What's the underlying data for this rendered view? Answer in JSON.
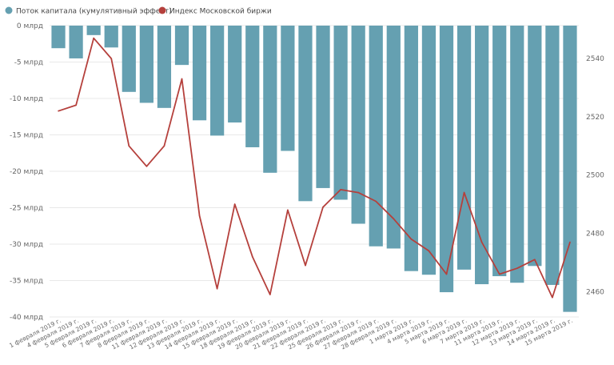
{
  "chart_data": {
    "type": "bar+line",
    "legend": {
      "placement": "top-left",
      "items": [
        {
          "label": "Поток капитала (кумулятивный эффект)",
          "color": "#65a0b1"
        },
        {
          "label": "Индекс Московской биржи",
          "color": "#b5403c"
        }
      ]
    },
    "categories": [
      "1 февраля 2019 г.",
      "4 февраля 2019 г.",
      "5 февраля 2019 г.",
      "6 февраля 2019 г.",
      "7 февраля 2019 г.",
      "8 февраля 2019 г.",
      "11 февраля 2019 г.",
      "12 февраля 2019 г.",
      "13 февраля 2019 г.",
      "14 февраля 2019 г.",
      "15 февраля 2019 г.",
      "18 февраля 2019 г.",
      "19 февраля 2019 г.",
      "20 февраля 2019 г.",
      "21 февраля 2019 г.",
      "22 февраля 2019 г.",
      "25 февраля 2019 г.",
      "26 февраля 2019 г.",
      "27 февраля 2019 г.",
      "28 февраля 2019 г.",
      "1 марта 2019 г.",
      "4 марта 2019 г.",
      "5 марта 2019 г.",
      "6 марта 2019 г.",
      "7 марта 2019 г.",
      "11 марта 2019 г.",
      "12 марта 2019 г.",
      "13 марта 2019 г.",
      "14 марта 2019 г.",
      "15 марта 2019 г."
    ],
    "series": [
      {
        "name": "Поток капитала (кумулятивный эффект)",
        "type": "bar",
        "axis": "left",
        "color": "#65a0b1",
        "values": [
          -3.1,
          -4.5,
          -1.3,
          -3.0,
          -9.1,
          -10.6,
          -11.3,
          -5.4,
          -13.0,
          -15.1,
          -13.3,
          -16.7,
          -20.2,
          -17.2,
          -24.1,
          -22.3,
          -23.9,
          -27.2,
          -30.3,
          -30.6,
          -33.7,
          -34.2,
          -36.6,
          -33.5,
          -35.5,
          -34.4,
          -35.3,
          -33.0,
          -35.6,
          -39.3
        ]
      },
      {
        "name": "Индекс Московской биржи",
        "type": "line",
        "axis": "right",
        "color": "#b5403c",
        "values": [
          2522,
          2524,
          2547,
          2540,
          2510,
          2503,
          2510,
          2533,
          2486,
          2461,
          2490,
          2472,
          2459,
          2488,
          2469,
          2489,
          2495,
          2494,
          2491,
          2485,
          2478,
          2474,
          2466,
          2494,
          2477,
          2466,
          2468,
          2471,
          2458,
          2477
        ]
      }
    ],
    "y_left": {
      "min": -40,
      "max": 0,
      "ticks": [
        0,
        -5,
        -10,
        -15,
        -20,
        -25,
        -30,
        -35,
        -40
      ],
      "tick_labels": [
        "0 млрд",
        "-5 млрд",
        "-10 млрд",
        "-15 млрд",
        "-20 млрд",
        "-25 млрд",
        "-30 млрд",
        "-35 млрд",
        "-40 млрд"
      ]
    },
    "y_right": {
      "min": 2451.3,
      "max": 2551.3,
      "ticks": [
        2460,
        2480,
        2500,
        2520,
        2540
      ],
      "tick_labels": [
        "2460",
        "2480",
        "2500",
        "2520",
        "2540"
      ]
    },
    "grid": true
  }
}
